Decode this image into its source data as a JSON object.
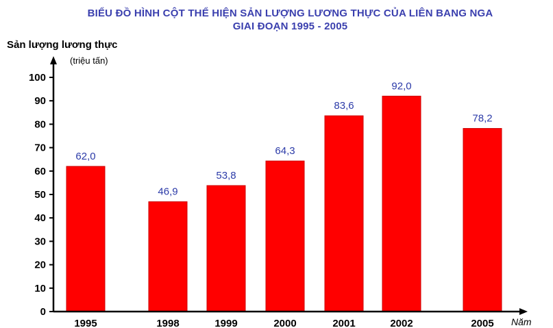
{
  "title_line1": "BIỂU ĐỒ HÌNH CỘT THỂ HIỆN SẢN LƯỢNG LƯƠNG THỰC CỦA LIÊN BANG NGA",
  "title_line2": "GIAI ĐOẠN 1995 - 2005",
  "colors": {
    "bar": "#ff0000",
    "bar_edge": "#cc0000",
    "value_label": "#2b3aa8",
    "title": "#3a3fae"
  },
  "chart_data": {
    "type": "bar",
    "title": "BIỂU ĐỒ HÌNH CỘT THỂ HIỆN SẢN LƯỢNG LƯƠNG THỰC CỦA LIÊN BANG NGA GIAI ĐOẠN 1995 - 2005",
    "ylabel": "Sản lượng lương thực",
    "yunit": "(triệu tấn)",
    "xlabel": "Năm",
    "categories": [
      "1995",
      "1998",
      "1999",
      "2000",
      "2001",
      "2002",
      "2005"
    ],
    "values": [
      62.0,
      46.9,
      53.8,
      64.3,
      83.6,
      92.0,
      78.2
    ],
    "value_labels": [
      "62,0",
      "46,9",
      "53,8",
      "64,3",
      "83,6",
      "92,0",
      "78,2"
    ],
    "ylim": [
      0,
      100
    ],
    "yticks": [
      0,
      10,
      20,
      30,
      40,
      50,
      60,
      70,
      80,
      90,
      100
    ],
    "grid": false,
    "legend": "none"
  }
}
